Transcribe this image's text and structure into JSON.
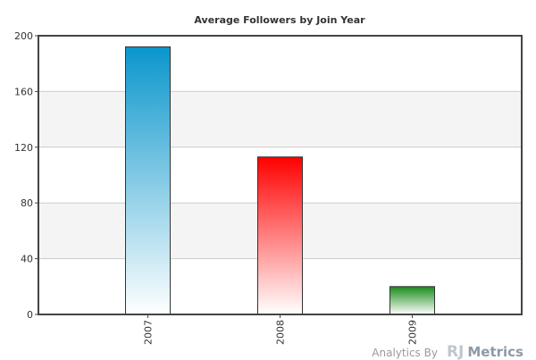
{
  "chart_data": {
    "type": "bar",
    "title": "Average Followers by Join Year",
    "xlabel": "",
    "ylabel": "",
    "categories": [
      "2007",
      "2008",
      "2009"
    ],
    "values": [
      192,
      113,
      20
    ],
    "ylim": [
      0,
      200
    ],
    "yticks": [
      "0",
      "40",
      "80",
      "120",
      "160",
      "200"
    ],
    "grid": true,
    "legend": "none",
    "colors": {
      "bars": [
        "#0a96cc",
        "#ff0000",
        "#1a8a1a"
      ],
      "band": "#f4f4f4",
      "gridline": "#cccccc",
      "frame": "#444444"
    }
  },
  "branding": {
    "prefix": "Analytics By",
    "rj": "RJ",
    "metrics": "Metrics"
  }
}
